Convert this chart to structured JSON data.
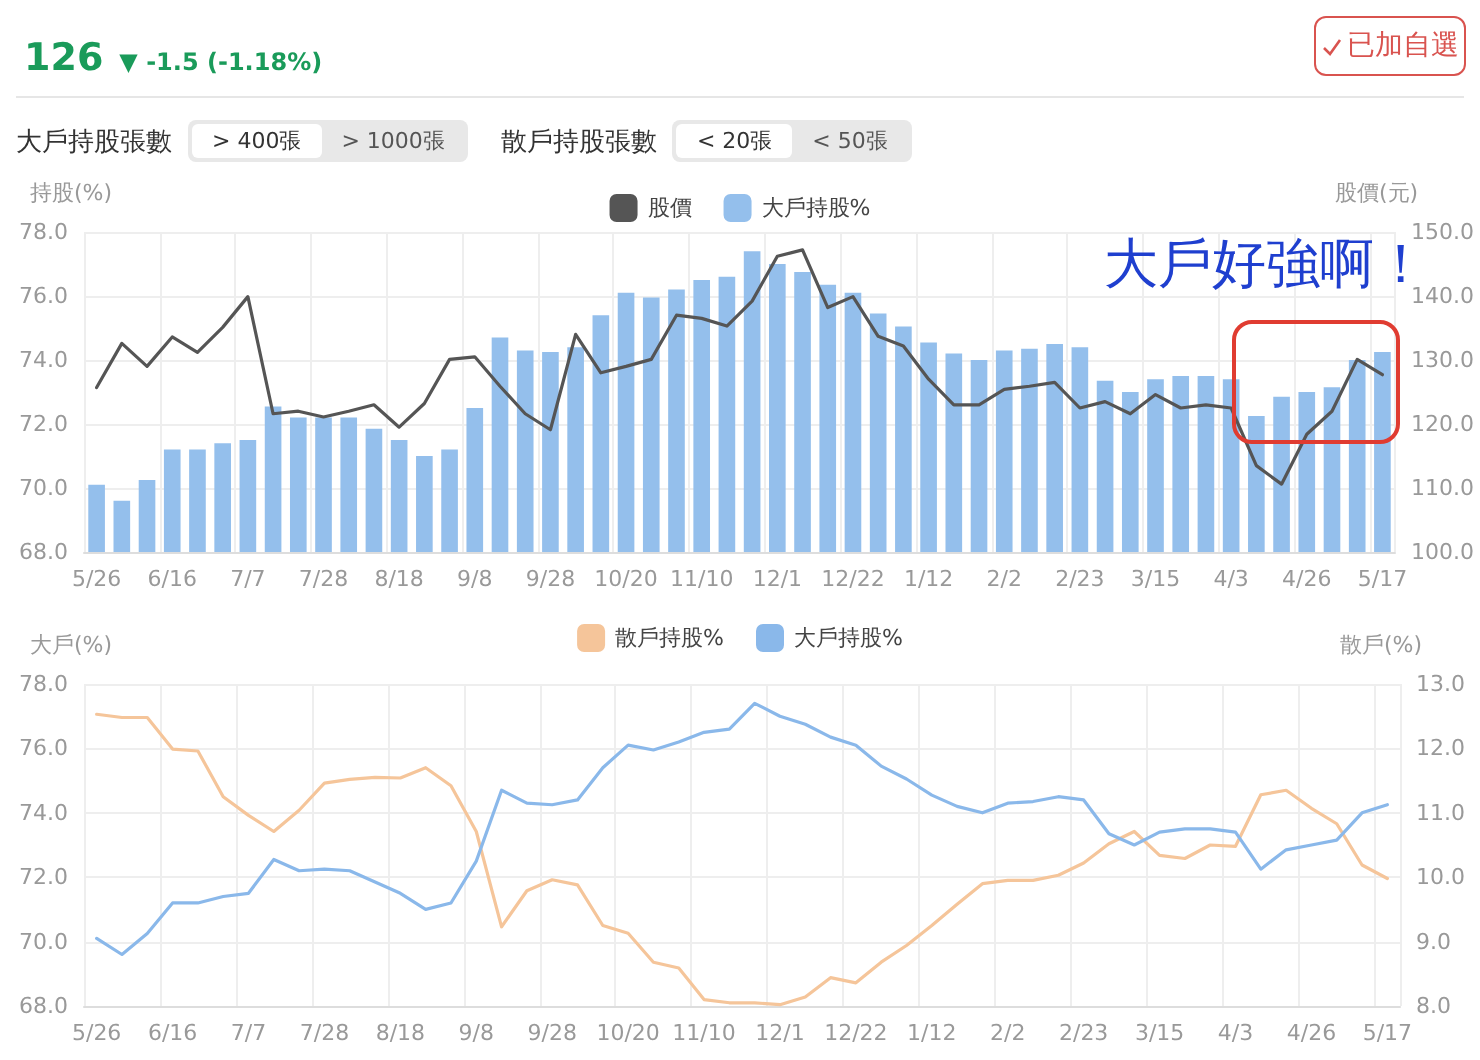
{
  "chart_data": [
    {
      "type": "bar",
      "ylabel": "持股(%)",
      "y2label": "股價(元)",
      "legend": "top",
      "grid": true,
      "marker": "none",
      "annotations": [
        "126",
        "▼ -1.5 (-1.18%)",
        "已加自選",
        "大戶持股張數",
        "> 400張",
        "> 1000張",
        "散戶持股張數",
        "< 20張",
        "< 50張",
        "大戶好強啊！"
      ],
      "categories": [
        "5/26",
        null,
        null,
        "6/16",
        null,
        null,
        "7/7",
        null,
        null,
        "7/28",
        null,
        null,
        "8/18",
        null,
        null,
        "9/8",
        null,
        null,
        "9/28",
        null,
        null,
        "10/20",
        null,
        null,
        "11/10",
        null,
        null,
        "12/1",
        null,
        null,
        "12/22",
        null,
        null,
        "1/12",
        null,
        null,
        "2/2",
        null,
        null,
        "2/23",
        null,
        null,
        "3/15",
        null,
        null,
        "4/3",
        null,
        null,
        "4/26",
        null,
        null,
        "5/17"
      ],
      "ylim": [
        68,
        78
      ],
      "yticks": [
        {
          "value": 68,
          "label": "68.0"
        },
        {
          "value": 70,
          "label": "70.0"
        },
        {
          "value": 72,
          "label": "72.0"
        },
        {
          "value": 74,
          "label": "74.0"
        },
        {
          "value": 76,
          "label": "76.0"
        },
        {
          "value": 78,
          "label": "78.0"
        }
      ],
      "y2lim": [
        100,
        150
      ],
      "y2ticks": [
        {
          "value": 100,
          "label": "100.0"
        },
        {
          "value": 110,
          "label": "110.0"
        },
        {
          "value": 120,
          "label": "120.0"
        },
        {
          "value": 130,
          "label": "130.0"
        },
        {
          "value": 140,
          "label": "140.0"
        },
        {
          "value": 150,
          "label": "150.0"
        }
      ],
      "series": [
        {
          "name": "股價",
          "type": "line",
          "axis": "y2",
          "color": "#555555",
          "values": [
            125.7,
            132.6,
            129.0,
            133.6,
            131.2,
            135.1,
            139.9,
            121.6,
            122.0,
            121.1,
            122.0,
            123.0,
            119.5,
            123.2,
            130.1,
            130.5,
            125.9,
            121.6,
            119.1,
            134.0,
            128.0,
            129.0,
            130.1,
            137.0,
            136.5,
            135.3,
            139.2,
            146.2,
            147.2,
            138.2,
            139.9,
            133.7,
            132.2,
            127.0,
            123.0,
            123.0,
            125.4,
            125.9,
            126.5,
            122.5,
            123.5,
            121.6,
            124.6,
            122.5,
            123.0,
            122.5,
            113.5,
            110.6,
            118.4,
            122.0,
            130.1,
            127.7
          ]
        },
        {
          "name": "大戶持股%",
          "color": "#94bfec",
          "values": [
            70.1,
            69.6,
            70.25,
            71.2,
            71.2,
            71.4,
            71.5,
            72.55,
            72.2,
            72.2,
            72.2,
            71.85,
            71.5,
            71.0,
            71.2,
            72.5,
            74.7,
            74.3,
            74.25,
            74.4,
            75.4,
            76.1,
            75.95,
            76.2,
            76.5,
            76.6,
            77.4,
            77.0,
            76.75,
            76.35,
            76.1,
            75.45,
            75.05,
            74.55,
            74.2,
            74.0,
            74.3,
            74.35,
            74.5,
            74.4,
            73.35,
            73.0,
            73.4,
            73.5,
            73.5,
            73.4,
            72.25,
            72.85,
            73.0,
            73.15,
            74.0,
            74.25
          ]
        }
      ]
    },
    {
      "type": "line",
      "ylabel": "大戶(%)",
      "y2label": "散戶(%)",
      "legend": "top",
      "grid": true,
      "marker": "none",
      "categories": [
        "5/26",
        null,
        null,
        "6/16",
        null,
        null,
        "7/7",
        null,
        null,
        "7/28",
        null,
        null,
        "8/18",
        null,
        null,
        "9/8",
        null,
        null,
        "9/28",
        null,
        null,
        "10/20",
        null,
        null,
        "11/10",
        null,
        null,
        "12/1",
        null,
        null,
        "12/22",
        null,
        null,
        "1/12",
        null,
        null,
        "2/2",
        null,
        null,
        "2/23",
        null,
        null,
        "3/15",
        null,
        null,
        "4/3",
        null,
        null,
        "4/26",
        null,
        null,
        "5/17"
      ],
      "ylim": [
        68,
        78
      ],
      "yticks": [
        {
          "value": 68,
          "label": "68.0"
        },
        {
          "value": 70,
          "label": "70.0"
        },
        {
          "value": 72,
          "label": "72.0"
        },
        {
          "value": 74,
          "label": "74.0"
        },
        {
          "value": 76,
          "label": "76.0"
        },
        {
          "value": 78,
          "label": "78.0"
        }
      ],
      "y2lim": [
        8,
        13
      ],
      "y2ticks": [
        {
          "value": 8,
          "label": "8.0"
        },
        {
          "value": 9,
          "label": "9.0"
        },
        {
          "value": 10,
          "label": "10.0"
        },
        {
          "value": 11,
          "label": "11.0"
        },
        {
          "value": 12,
          "label": "12.0"
        },
        {
          "value": 13,
          "label": "13.0"
        }
      ],
      "series": [
        {
          "name": "散戶持股%",
          "axis": "y2",
          "color": "#f5c59a",
          "values": [
            12.53,
            12.48,
            12.48,
            11.99,
            11.96,
            11.25,
            10.96,
            10.71,
            11.04,
            11.46,
            11.52,
            11.55,
            11.54,
            11.7,
            11.42,
            10.71,
            9.23,
            9.79,
            9.96,
            9.88,
            9.25,
            9.13,
            8.68,
            8.59,
            8.1,
            8.05,
            8.05,
            8.02,
            8.14,
            8.44,
            8.36,
            8.68,
            8.94,
            9.25,
            9.58,
            9.9,
            9.95,
            9.95,
            10.03,
            10.22,
            10.52,
            10.71,
            10.34,
            10.29,
            10.5,
            10.48,
            11.28,
            11.35,
            11.07,
            10.83,
            10.19,
            9.98
          ]
        },
        {
          "name": "大戶持股%",
          "color": "#8ab8ea",
          "values": [
            70.1,
            69.6,
            70.25,
            71.2,
            71.2,
            71.4,
            71.5,
            72.55,
            72.2,
            72.25,
            72.2,
            71.85,
            71.5,
            71.0,
            71.2,
            72.5,
            74.7,
            74.3,
            74.25,
            74.4,
            75.4,
            76.1,
            75.95,
            76.2,
            76.5,
            76.6,
            77.4,
            77.0,
            76.75,
            76.35,
            76.1,
            75.45,
            75.05,
            74.55,
            74.2,
            74.0,
            74.3,
            74.35,
            74.5,
            74.4,
            73.35,
            73.0,
            73.4,
            73.5,
            73.5,
            73.4,
            72.25,
            72.85,
            73.0,
            73.15,
            74.0,
            74.25
          ]
        }
      ]
    }
  ]
}
